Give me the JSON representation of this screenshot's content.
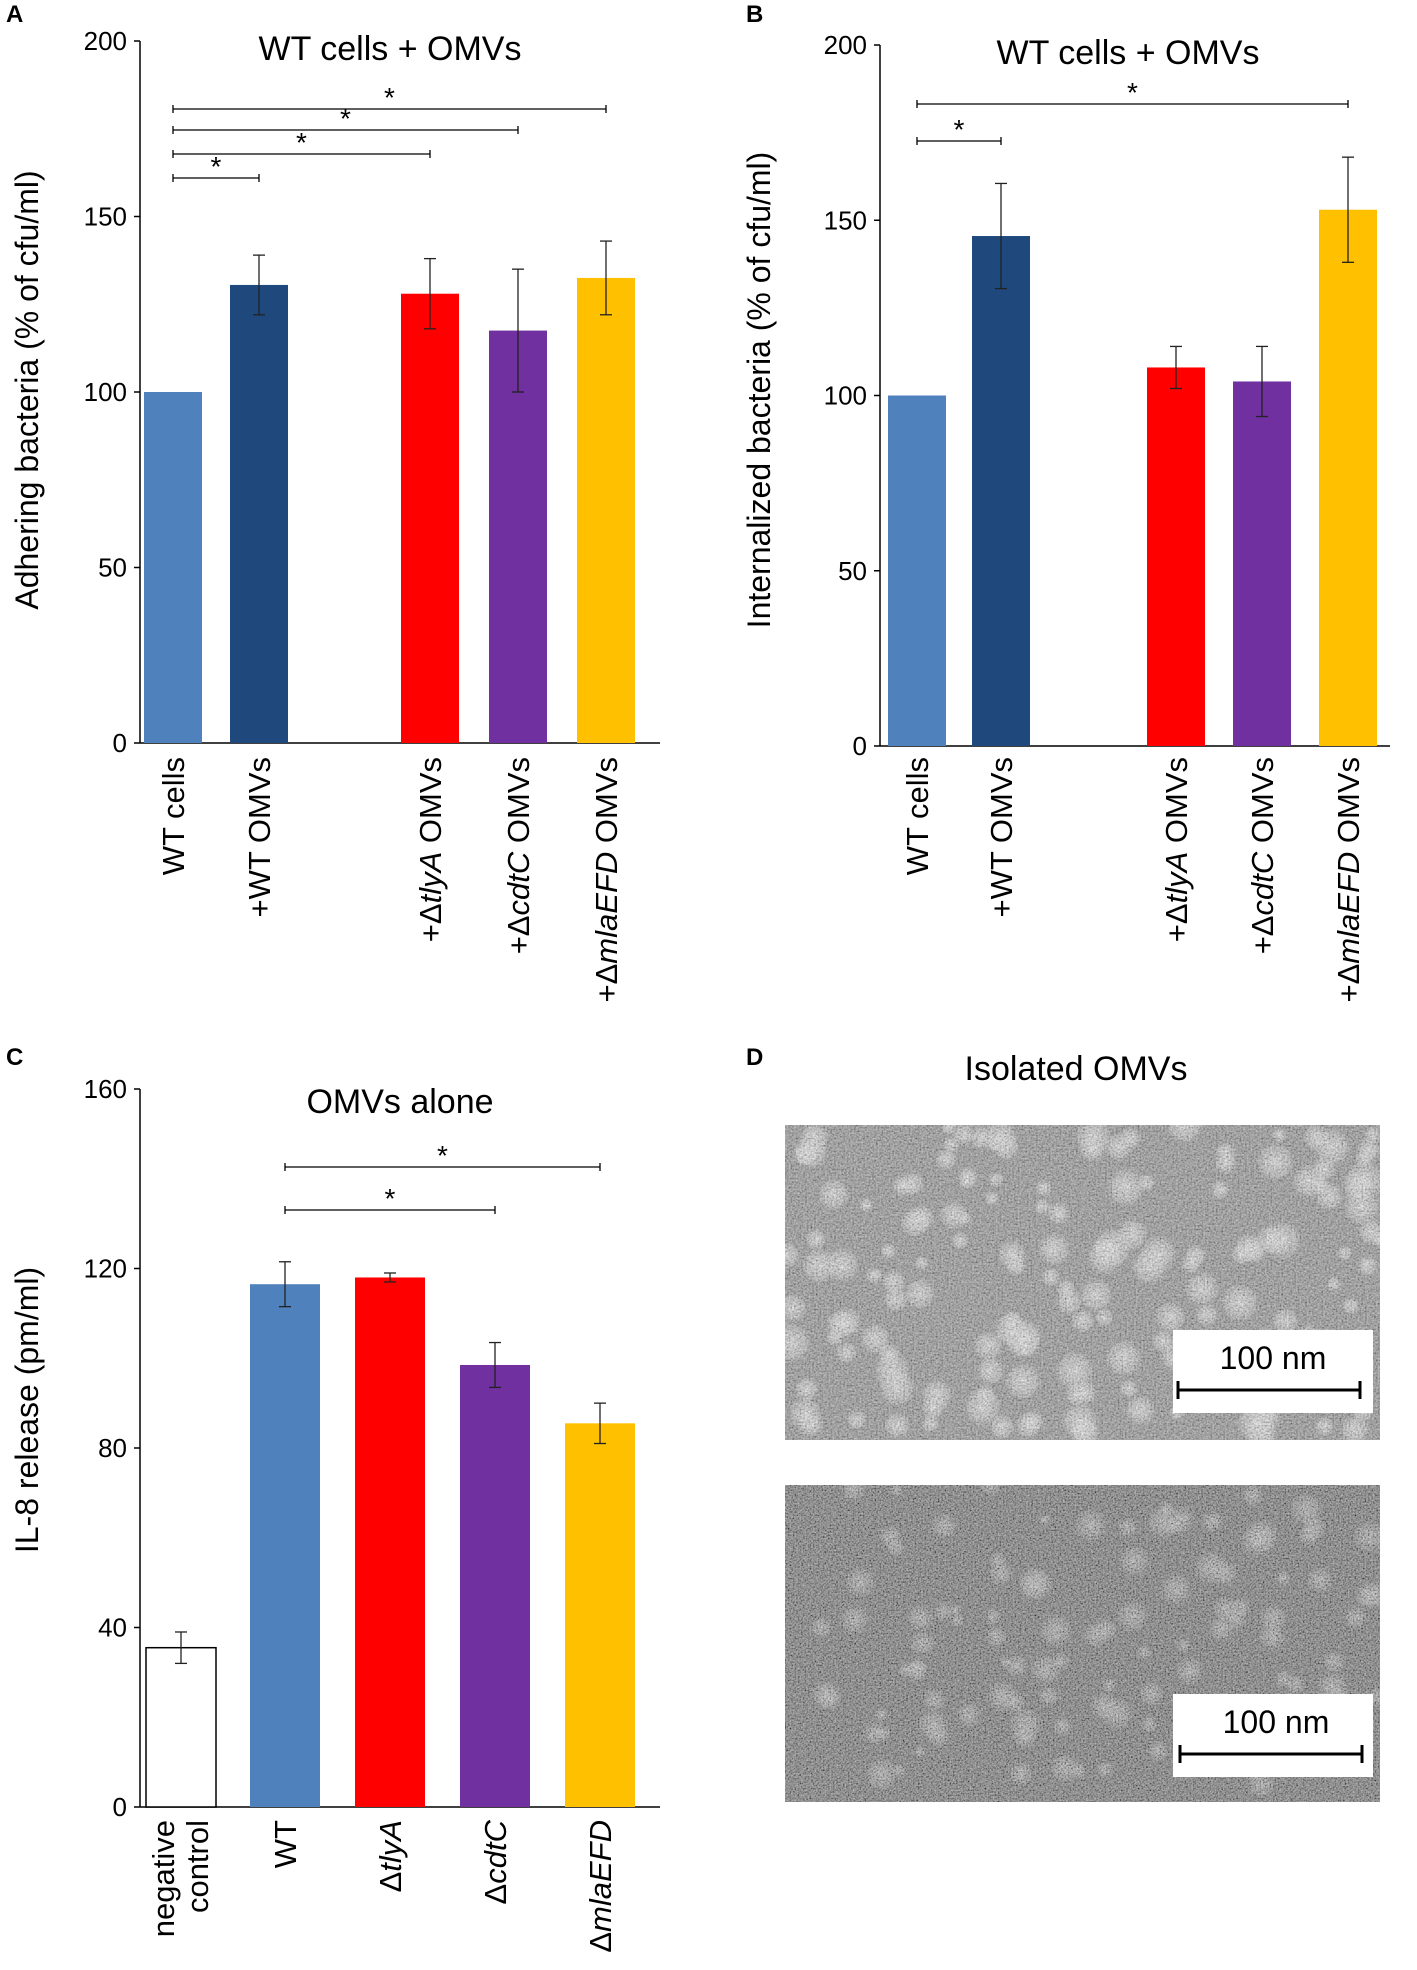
{
  "colors": {
    "wt_cells": "#4F81BD",
    "wt_omvs": "#1F497D",
    "tlyA": "#FF0000",
    "cdtC": "#7030A0",
    "mlaEFD": "#FFC000",
    "negative_control": "#FFFFFF"
  },
  "chart_data": [
    {
      "panel": "A",
      "type": "bar",
      "title": "WT cells + OMVs",
      "xlabel": "",
      "ylabel": "Adhering bacteria (% of cfu/ml)",
      "ylim": [
        0,
        200
      ],
      "yticks": [
        "0",
        "50",
        "100",
        "150",
        "200"
      ],
      "categories": [
        {
          "pre": "WT cells",
          "ital": "",
          "post": ""
        },
        {
          "pre": "+WT OMVs",
          "ital": "",
          "post": ""
        },
        {
          "pre": "+Δ",
          "ital": "tlyA",
          "post": " OMVs"
        },
        {
          "pre": "+Δ",
          "ital": "cdtC",
          "post": " OMVs"
        },
        {
          "pre": "+Δ",
          "ital": "mlaEFD",
          "post": " OMVs"
        }
      ],
      "values": [
        100,
        130.5,
        128,
        117.5,
        132.5
      ],
      "errors": [
        0,
        8.5,
        10,
        17.5,
        10.5
      ],
      "significance": [
        {
          "from": 0,
          "to": 1,
          "label": "*"
        },
        {
          "from": 0,
          "to": 2,
          "label": "*"
        },
        {
          "from": 0,
          "to": 3,
          "label": "*"
        },
        {
          "from": 0,
          "to": 4,
          "label": "*"
        }
      ]
    },
    {
      "panel": "B",
      "type": "bar",
      "title": "WT cells + OMVs",
      "xlabel": "",
      "ylabel": "Internalized bacteria (% of cfu/ml)",
      "ylim": [
        0,
        200
      ],
      "yticks": [
        "0",
        "50",
        "100",
        "150",
        "200"
      ],
      "categories": [
        {
          "pre": "WT cells",
          "ital": "",
          "post": ""
        },
        {
          "pre": "+WT OMVs",
          "ital": "",
          "post": ""
        },
        {
          "pre": "+Δ",
          "ital": "tlyA",
          "post": " OMVs"
        },
        {
          "pre": "+Δ",
          "ital": "cdtC",
          "post": " OMVs"
        },
        {
          "pre": "+Δ",
          "ital": "mlaEFD",
          "post": " OMVs"
        }
      ],
      "values": [
        100,
        145.5,
        108,
        104,
        153
      ],
      "errors": [
        0,
        15,
        6,
        10,
        15
      ],
      "significance": [
        {
          "from": 0,
          "to": 1,
          "label": "*"
        },
        {
          "from": 0,
          "to": 4,
          "label": "*"
        }
      ]
    },
    {
      "panel": "C",
      "type": "bar",
      "title": "OMVs alone",
      "xlabel": "",
      "ylabel": "IL-8 release (pm/ml)",
      "ylim": [
        0,
        160
      ],
      "yticks": [
        "0",
        "40",
        "80",
        "120",
        "160"
      ],
      "categories": [
        {
          "pre": "negative",
          "ital": "",
          "post": "",
          "line2": "control"
        },
        {
          "pre": "WT",
          "ital": "",
          "post": ""
        },
        {
          "pre": "Δ",
          "ital": "tlyA",
          "post": ""
        },
        {
          "pre": "Δ",
          "ital": "cdtC",
          "post": ""
        },
        {
          "pre": "Δ",
          "ital": "mlaEFD",
          "post": ""
        }
      ],
      "values": [
        35.5,
        116.5,
        118,
        98.5,
        85.5
      ],
      "errors": [
        3.5,
        5,
        1,
        5,
        4.5
      ],
      "significance": [
        {
          "from": 1,
          "to": 3,
          "label": "*"
        },
        {
          "from": 1,
          "to": 4,
          "label": "*"
        }
      ]
    }
  ],
  "panel_d": {
    "label": "D",
    "title": "Isolated OMVs",
    "scale_bar_top": "100 nm",
    "scale_bar_bottom": "100 nm"
  }
}
